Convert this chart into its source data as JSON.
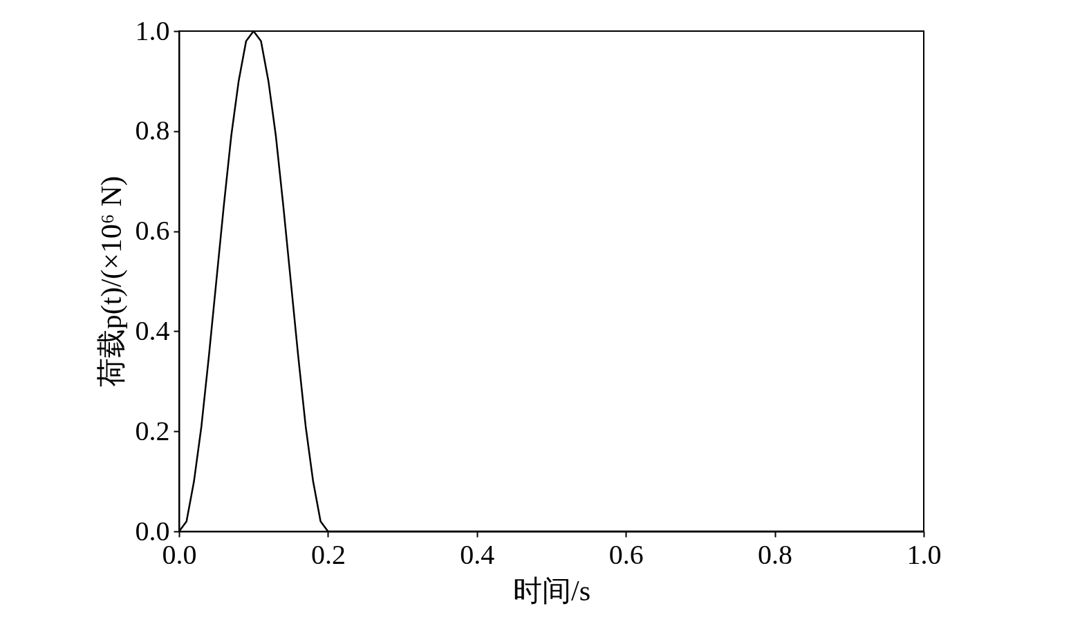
{
  "chart_data": {
    "type": "line",
    "xlabel": "时间/s",
    "ylabel": "荷载p(t)/(×10⁶ N)",
    "x": [
      0,
      0.01,
      0.02,
      0.03,
      0.04,
      0.05,
      0.06,
      0.07,
      0.08,
      0.09,
      0.1,
      0.11,
      0.12,
      0.13,
      0.14,
      0.15,
      0.16,
      0.17,
      0.18,
      0.19,
      0.2,
      1.0
    ],
    "series": [
      {
        "color": "#000000",
        "values": [
          0,
          0.02,
          0.1,
          0.21,
          0.35,
          0.5,
          0.65,
          0.79,
          0.9,
          0.98,
          1.0,
          0.98,
          0.9,
          0.79,
          0.65,
          0.5,
          0.35,
          0.21,
          0.1,
          0.02,
          0,
          0
        ]
      }
    ],
    "xlim": [
      0,
      1.0
    ],
    "ylim": [
      0,
      1.0
    ],
    "xticks": [
      {
        "value": 0,
        "label": "0.0"
      },
      0.2,
      0.4,
      0.6,
      0.8,
      {
        "value": 1.0,
        "label": "1.0"
      }
    ],
    "yticks": [
      {
        "value": 0,
        "label": "0.0"
      },
      0.2,
      0.4,
      0.6,
      0.8,
      {
        "value": 1.0,
        "label": "1.0"
      }
    ],
    "grid": false,
    "marker": "none",
    "line_style": "solid"
  }
}
